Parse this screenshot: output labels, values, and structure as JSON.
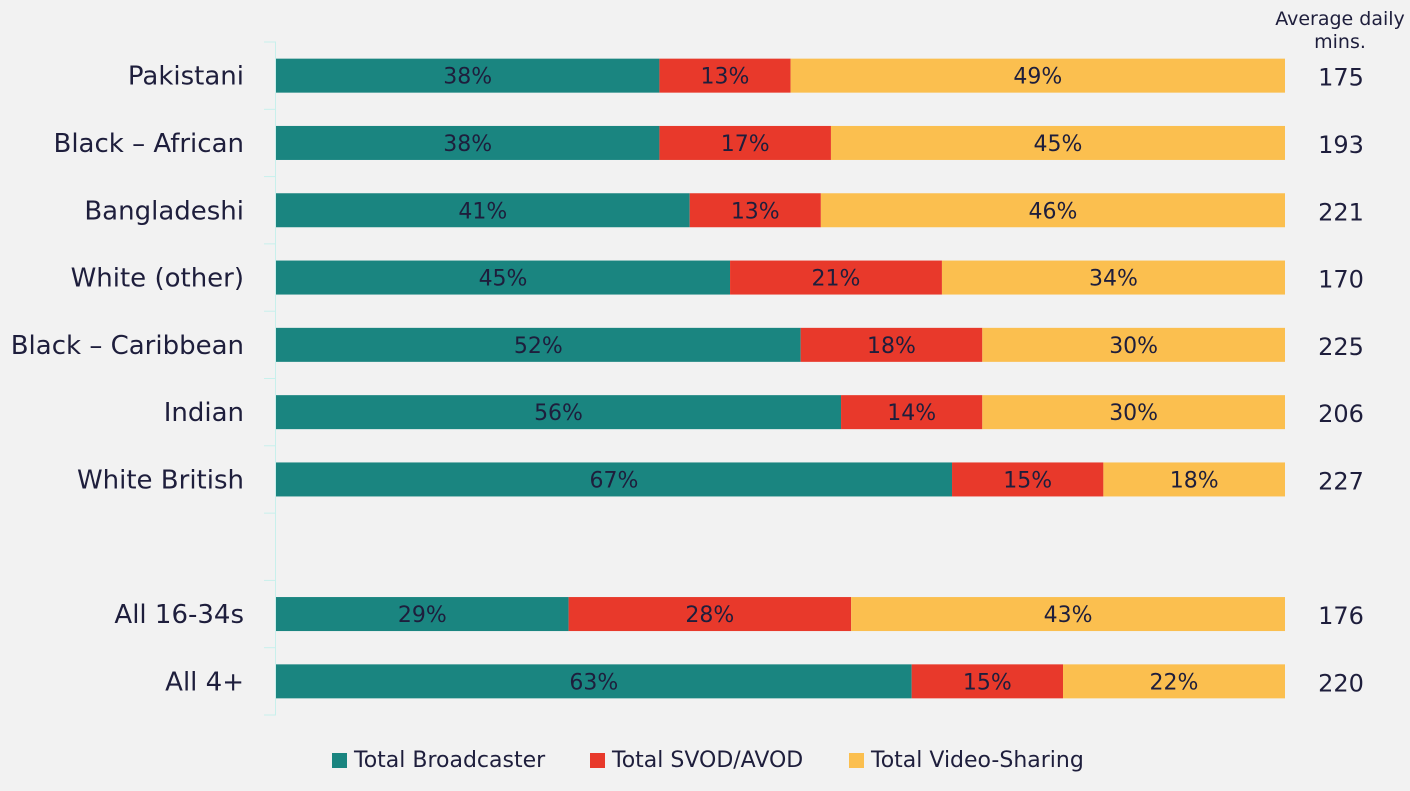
{
  "chart_data": {
    "type": "bar",
    "orientation": "horizontal",
    "stacked": true,
    "percent": true,
    "categories": [
      "Pakistani",
      "Black – African",
      "Bangladeshi",
      "White (other)",
      "Black – Caribbean",
      "Indian",
      "White British",
      "",
      "All 16-34s",
      "All 4+"
    ],
    "series": [
      {
        "name": "Total Broadcaster",
        "color": "#1a8580",
        "values": [
          38,
          38,
          41,
          45,
          52,
          56,
          67,
          null,
          29,
          63
        ]
      },
      {
        "name": "Total SVOD/AVOD",
        "color": "#e8392b",
        "values": [
          13,
          17,
          13,
          21,
          18,
          14,
          15,
          null,
          28,
          15
        ]
      },
      {
        "name": "Total Video-Sharing",
        "color": "#fbbf4f",
        "values": [
          49,
          45,
          46,
          34,
          30,
          30,
          18,
          null,
          43,
          22
        ]
      }
    ],
    "side_column": {
      "title": "Average daily mins.",
      "values": [
        175,
        193,
        221,
        170,
        225,
        206,
        227,
        null,
        176,
        220
      ]
    },
    "xlim": [
      0,
      100
    ],
    "grid": false,
    "legend": "bottom"
  }
}
